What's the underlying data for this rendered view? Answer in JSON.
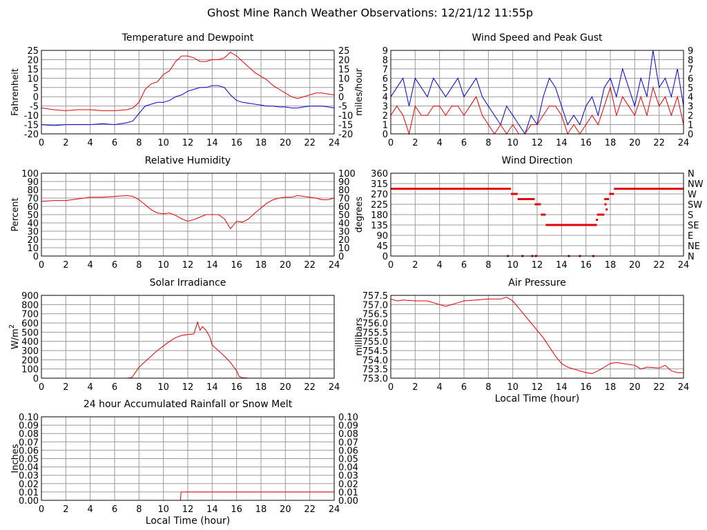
{
  "page_title": "Ghost Mine Ranch Weather Observations: 12/21/12 11:55p",
  "chart_data": [
    {
      "id": "temp",
      "type": "line",
      "title": "Temperature and Dewpoint",
      "ylabel": "Fahrenheit",
      "xlabel": "",
      "xlim": [
        0,
        24
      ],
      "ylim": [
        -20,
        25
      ],
      "x_ticks": [
        "0",
        "2",
        "4",
        "6",
        "8",
        "10",
        "12",
        "14",
        "16",
        "18",
        "20",
        "22",
        "24"
      ],
      "y_ticks": [
        "-20",
        "-15",
        "-10",
        "-5",
        "0",
        "5",
        "10",
        "15",
        "20",
        "25"
      ],
      "right_ticks": [
        "-20",
        "-15",
        "-10",
        "-5",
        "0",
        "5",
        "10",
        "15",
        "20",
        "25"
      ],
      "grid": true,
      "series": [
        {
          "color": "#e00000",
          "x": [
            0,
            1,
            2,
            3,
            4,
            5,
            6,
            7,
            7.5,
            8,
            8.5,
            9,
            9.5,
            10,
            10.5,
            11,
            11.5,
            12,
            12.5,
            13,
            13.5,
            14,
            14.5,
            15,
            15.5,
            16,
            16.5,
            17,
            17.5,
            18,
            18.5,
            19,
            19.5,
            20,
            20.5,
            21,
            21.5,
            22,
            22.5,
            23,
            23.5,
            24
          ],
          "y": [
            -6,
            -7,
            -7.5,
            -7,
            -7,
            -7.5,
            -7.5,
            -7,
            -6,
            -3,
            4,
            7,
            8,
            12,
            14,
            19,
            22,
            22,
            21,
            19,
            19,
            20,
            20,
            21,
            24,
            22,
            19,
            16,
            13,
            11,
            9,
            6,
            4,
            2,
            0,
            -1,
            0,
            1,
            2,
            2,
            1.5,
            1
          ]
        },
        {
          "color": "#0000d0",
          "x": [
            0,
            1,
            2,
            3,
            4,
            5,
            6,
            7,
            7.5,
            8,
            8.5,
            9,
            9.5,
            10,
            10.5,
            11,
            11.5,
            12,
            12.5,
            13,
            13.5,
            14,
            14.5,
            15,
            15.5,
            16,
            16.5,
            17,
            17.5,
            18,
            18.5,
            19,
            19.5,
            20,
            20.5,
            21,
            21.5,
            22,
            22.5,
            23,
            23.5,
            24
          ],
          "y": [
            -15,
            -15.5,
            -15,
            -15,
            -15,
            -14.5,
            -15,
            -14,
            -13,
            -9,
            -5,
            -4,
            -3,
            -3,
            -2,
            0,
            1,
            3,
            4,
            5,
            5,
            6,
            6,
            5,
            1,
            -2,
            -3,
            -3.5,
            -4,
            -4.5,
            -5,
            -5,
            -5.5,
            -5.5,
            -6,
            -6,
            -5.5,
            -5,
            -5,
            -5,
            -5.5,
            -6
          ]
        }
      ]
    },
    {
      "id": "wind",
      "type": "line",
      "title": "Wind Speed and Peak Gust",
      "ylabel": "miles/hour",
      "xlabel": "",
      "xlim": [
        0,
        24
      ],
      "ylim": [
        0,
        9
      ],
      "x_ticks": [
        "0",
        "2",
        "4",
        "6",
        "8",
        "10",
        "12",
        "14",
        "16",
        "18",
        "20",
        "22",
        "24"
      ],
      "y_ticks": [
        "0",
        "1",
        "2",
        "3",
        "4",
        "5",
        "6",
        "7",
        "8",
        "9"
      ],
      "right_ticks": [
        "0",
        "1",
        "2",
        "3",
        "4",
        "5",
        "6",
        "7",
        "8",
        "9"
      ],
      "grid": true,
      "series": [
        {
          "color": "#0000d0",
          "x": [
            0,
            0.5,
            1,
            1.5,
            2,
            2.5,
            3,
            3.5,
            4,
            4.5,
            5,
            5.5,
            6,
            6.5,
            7,
            7.5,
            8,
            8.5,
            9,
            9.5,
            10,
            10.5,
            11,
            11.5,
            12,
            12.5,
            13,
            13.5,
            14,
            14.5,
            15,
            15.5,
            16,
            16.5,
            17,
            17.5,
            18,
            18.5,
            19,
            19.5,
            20,
            20.5,
            21,
            21.5,
            22,
            22.5,
            23,
            23.5,
            24
          ],
          "y": [
            4,
            5,
            6,
            3,
            6,
            5,
            4,
            6,
            5,
            4,
            5,
            6,
            4,
            5,
            6,
            4,
            3,
            2,
            1,
            3,
            2,
            1,
            0,
            2,
            1,
            4,
            6,
            5,
            3,
            1,
            2,
            1,
            3,
            4,
            2,
            5,
            6,
            4,
            7,
            5,
            3,
            6,
            4,
            9,
            5,
            6,
            4,
            7,
            3
          ]
        },
        {
          "color": "#e00000",
          "x": [
            0,
            0.5,
            1,
            1.5,
            2,
            2.5,
            3,
            3.5,
            4,
            4.5,
            5,
            5.5,
            6,
            6.5,
            7,
            7.5,
            8,
            8.5,
            9,
            9.5,
            10,
            10.5,
            11,
            11.5,
            12,
            12.5,
            13,
            13.5,
            14,
            14.5,
            15,
            15.5,
            16,
            16.5,
            17,
            17.5,
            18,
            18.5,
            19,
            19.5,
            20,
            20.5,
            21,
            21.5,
            22,
            22.5,
            23,
            23.5,
            24
          ],
          "y": [
            2,
            3,
            2,
            0,
            3,
            2,
            2,
            3,
            3,
            2,
            3,
            3,
            2,
            3,
            4,
            2,
            1,
            0,
            1,
            0,
            1,
            0,
            0,
            1,
            1,
            2,
            3,
            3,
            2,
            0,
            1,
            0,
            1,
            2,
            1,
            3,
            5,
            2,
            4,
            3,
            2,
            4,
            2,
            5,
            3,
            4,
            2,
            4,
            1
          ]
        }
      ]
    },
    {
      "id": "humidity",
      "type": "line",
      "title": "Relative Humidity",
      "ylabel": "Percent",
      "xlabel": "",
      "xlim": [
        0,
        24
      ],
      "ylim": [
        0,
        100
      ],
      "x_ticks": [
        "0",
        "2",
        "4",
        "6",
        "8",
        "10",
        "12",
        "14",
        "16",
        "18",
        "20",
        "22",
        "24"
      ],
      "y_ticks": [
        "0",
        "10",
        "20",
        "30",
        "40",
        "50",
        "60",
        "70",
        "80",
        "90",
        "100"
      ],
      "right_ticks": [
        "0",
        "10",
        "20",
        "30",
        "40",
        "50",
        "60",
        "70",
        "80",
        "90",
        "100"
      ],
      "grid": true,
      "series": [
        {
          "color": "#e00000",
          "x": [
            0,
            1,
            2,
            3,
            4,
            5,
            6,
            7,
            7.5,
            8,
            8.5,
            9,
            9.5,
            10,
            10.5,
            11,
            11.5,
            12,
            12.5,
            13,
            13.5,
            14,
            14.5,
            15,
            15.5,
            16,
            16.5,
            17,
            17.5,
            18,
            18.5,
            19,
            19.5,
            20,
            20.5,
            21,
            21.5,
            22,
            22.5,
            23,
            23.5,
            24
          ],
          "y": [
            66,
            67,
            67,
            69,
            71,
            71,
            72,
            73,
            72,
            68,
            62,
            56,
            52,
            51,
            52,
            49,
            45,
            42,
            44,
            47,
            50,
            50,
            50,
            45,
            33,
            42,
            41,
            45,
            52,
            58,
            64,
            68,
            70,
            71,
            71,
            73,
            72,
            71,
            70,
            68,
            68,
            70
          ]
        }
      ]
    },
    {
      "id": "direction",
      "type": "scatter",
      "title": "Wind Direction",
      "ylabel": "degrees",
      "xlabel": "",
      "xlim": [
        0,
        24
      ],
      "ylim": [
        0,
        360
      ],
      "x_ticks": [
        "0",
        "2",
        "4",
        "6",
        "8",
        "10",
        "12",
        "14",
        "16",
        "18",
        "20",
        "22",
        "24"
      ],
      "y_ticks": [
        "0",
        "45",
        "90",
        "135",
        "180",
        "225",
        "270",
        "315",
        "360"
      ],
      "right_ticks": [
        "N",
        "NE",
        "E",
        "SE",
        "S",
        "SW",
        "W",
        "NW",
        "N"
      ],
      "grid": true,
      "segments": [
        {
          "x0": 0,
          "x1": 9.85,
          "y": 292.5
        },
        {
          "x0": 9.85,
          "x1": 10.4,
          "y": 270
        },
        {
          "x0": 10.4,
          "x1": 11.8,
          "y": 247.5
        },
        {
          "x0": 11.8,
          "x1": 12.3,
          "y": 225
        },
        {
          "x0": 12.3,
          "x1": 12.7,
          "y": 180
        },
        {
          "x0": 12.7,
          "x1": 16.9,
          "y": 135
        },
        {
          "x0": 16.9,
          "x1": 17.5,
          "y": 180
        },
        {
          "x0": 17.5,
          "x1": 17.9,
          "y": 247.5
        },
        {
          "x0": 17.9,
          "x1": 18.3,
          "y": 270
        },
        {
          "x0": 18.3,
          "x1": 24,
          "y": 292.5
        }
      ],
      "points": [
        {
          "x": 9.6,
          "y": 0
        },
        {
          "x": 10.8,
          "y": 0
        },
        {
          "x": 11.6,
          "y": 0
        },
        {
          "x": 11.9,
          "y": 0
        },
        {
          "x": 14.6,
          "y": 0
        },
        {
          "x": 15.5,
          "y": 0
        },
        {
          "x": 16.6,
          "y": 0
        },
        {
          "x": 16.9,
          "y": 157.5
        },
        {
          "x": 17.6,
          "y": 225
        },
        {
          "x": 17.7,
          "y": 202.5
        }
      ]
    },
    {
      "id": "solar",
      "type": "area",
      "title": "Solar Irradiance",
      "ylabel": "W/m",
      "ylabel_sup": "2",
      "xlabel": "",
      "xlim": [
        0,
        24
      ],
      "ylim": [
        0,
        900
      ],
      "x_ticks": [
        "0",
        "2",
        "4",
        "6",
        "8",
        "10",
        "12",
        "14",
        "16",
        "18",
        "20",
        "22",
        "24"
      ],
      "y_ticks": [
        "0",
        "100",
        "200",
        "300",
        "400",
        "500",
        "600",
        "700",
        "800",
        "900"
      ],
      "right_ticks": [],
      "grid": true,
      "series": [
        {
          "color": "#e00000",
          "x": [
            0,
            7,
            7.4,
            7.8,
            8,
            8.5,
            9,
            9.5,
            10,
            10.5,
            11,
            11.5,
            12,
            12.5,
            12.8,
            13,
            13.2,
            13.5,
            13.8,
            14,
            14.5,
            15,
            15.5,
            16,
            16.2,
            16.5,
            17,
            24
          ],
          "y": [
            0,
            0,
            5,
            80,
            120,
            180,
            240,
            300,
            350,
            400,
            440,
            465,
            475,
            480,
            610,
            520,
            560,
            520,
            450,
            360,
            300,
            240,
            170,
            80,
            20,
            5,
            0,
            0
          ]
        }
      ]
    },
    {
      "id": "pressure",
      "type": "line",
      "title": "Air Pressure",
      "ylabel": "millibars",
      "xlabel": "Local Time (hour)",
      "xlim": [
        0,
        24
      ],
      "ylim": [
        753.0,
        757.5
      ],
      "x_ticks": [
        "0",
        "2",
        "4",
        "6",
        "8",
        "10",
        "12",
        "14",
        "16",
        "18",
        "20",
        "22",
        "24"
      ],
      "y_ticks": [
        "753.0",
        "753.5",
        "754.0",
        "754.5",
        "755.0",
        "755.5",
        "756.0",
        "756.5",
        "757.0",
        "757.5"
      ],
      "right_ticks": [],
      "grid": true,
      "series": [
        {
          "color": "#e00000",
          "x": [
            0,
            0.5,
            1,
            2,
            3,
            4,
            4.5,
            5,
            5.5,
            6,
            7,
            8,
            9,
            9.5,
            10,
            10.5,
            11,
            11.5,
            12,
            12.5,
            13,
            13.5,
            14,
            14.5,
            15,
            16,
            16.5,
            17,
            17.5,
            18,
            18.5,
            19,
            20,
            20.5,
            21,
            22,
            22.5,
            23,
            23.5,
            24
          ],
          "y": [
            757.3,
            757.2,
            757.25,
            757.2,
            757.2,
            757.0,
            756.9,
            757.0,
            757.1,
            757.2,
            757.25,
            757.3,
            757.3,
            757.4,
            757.2,
            756.8,
            756.4,
            756.0,
            755.6,
            755.2,
            754.7,
            754.2,
            753.8,
            753.6,
            753.5,
            753.3,
            753.25,
            753.4,
            753.6,
            753.8,
            753.85,
            753.8,
            753.7,
            753.5,
            753.6,
            753.55,
            753.7,
            753.4,
            753.3,
            753.3
          ]
        }
      ]
    },
    {
      "id": "rain",
      "type": "line",
      "title": "24 hour Accumulated Rainfall or Snow Melt",
      "ylabel": "Inches",
      "xlabel": "Local Time (hour)",
      "xlim": [
        0,
        24
      ],
      "ylim": [
        0,
        0.1
      ],
      "x_ticks": [
        "0",
        "2",
        "4",
        "6",
        "8",
        "10",
        "12",
        "14",
        "16",
        "18",
        "20",
        "22",
        "24"
      ],
      "y_ticks": [
        "0.00",
        "0.01",
        "0.02",
        "0.03",
        "0.04",
        "0.05",
        "0.06",
        "0.07",
        "0.08",
        "0.09",
        "0.10"
      ],
      "right_ticks": [
        "0.00",
        "0.01",
        "0.02",
        "0.03",
        "0.04",
        "0.05",
        "0.06",
        "0.07",
        "0.08",
        "0.09",
        "0.10"
      ],
      "grid": true,
      "series": [
        {
          "color": "#e00000",
          "x": [
            0,
            11.4,
            11.45,
            24
          ],
          "y": [
            0,
            0,
            0.01,
            0.01
          ]
        }
      ]
    }
  ]
}
